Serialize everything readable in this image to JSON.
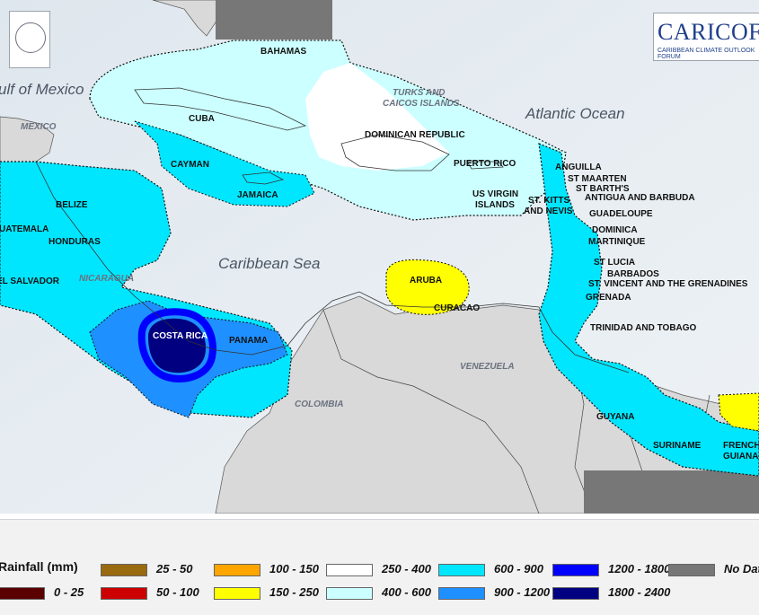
{
  "map": {
    "sea_labels": {
      "gulf": "ulf of Mexico",
      "atlantic": "Atlantic Ocean",
      "caribbean": "Caribbean Sea",
      "turks": "TURKS AND",
      "caicos": "CAICOS ISLANDS",
      "mexico": "MEXICO",
      "nicaragua": "NICARAGUA",
      "venezuela": "VENEZUELA",
      "colombia": "COLOMBIA"
    },
    "country_labels": {
      "bahamas": "BAHAMAS",
      "cuba": "CUBA",
      "cayman": "CAYMAN",
      "jamaica": "JAMAICA",
      "dominican_republic": "DOMINICAN REPUBLIC",
      "puerto_rico": "PUERTO RICO",
      "us_virgin_1": "US VIRGIN",
      "us_virgin_2": "ISLANDS",
      "anguilla": "ANGUILLA",
      "st_maarten": "ST MAARTEN",
      "st_barths": "ST BARTH'S",
      "antigua": "ANTIGUA AND BARBUDA",
      "st_kitts_1": "ST. KITTS",
      "st_kitts_2": "AND NEVIS",
      "guadeloupe": "GUADELOUPE",
      "dominica": "DOMINICA",
      "martinique": "MARTINIQUE",
      "st_lucia": "ST LUCIA",
      "barbados": "BARBADOS",
      "st_vincent": "ST. VINCENT AND THE GRENADINES",
      "grenada": "GRENADA",
      "trinidad": "TRINIDAD AND TOBAGO",
      "guyana": "GUYANA",
      "suriname": "SURINAME",
      "french_guiana_1": "FRENCH",
      "french_guiana_2": "GUIANA",
      "belize": "BELIZE",
      "guatemala": "UATEMALA",
      "honduras": "HONDURAS",
      "el_salvador": "EL SALVADOR",
      "costa_rica": "COSTA RICA",
      "panama": "PANAMA",
      "aruba": "ARUBA",
      "curacao": "CURACAO"
    },
    "logo": {
      "brand": "CARICOF",
      "tagline": "CARIBBEAN CLIMATE OUTLOOK FORUM"
    }
  },
  "legend": {
    "title": "Rainfall (mm)",
    "items": [
      {
        "label": "0 - 25",
        "color": "#5a0000"
      },
      {
        "label": "25 - 50",
        "color": "#9a6a10"
      },
      {
        "label": "50 - 100",
        "color": "#cc0000"
      },
      {
        "label": "100 - 150",
        "color": "#ffa500"
      },
      {
        "label": "150 - 250",
        "color": "#ffff00"
      },
      {
        "label": "250 - 400",
        "color": "#ffffff"
      },
      {
        "label": "400 - 600",
        "color": "#ccffff"
      },
      {
        "label": "600 - 900",
        "color": "#00e6ff"
      },
      {
        "label": "900 - 1200",
        "color": "#1e90ff"
      },
      {
        "label": "1200 - 1800",
        "color": "#0000ff"
      },
      {
        "label": "1800 - 2400",
        "color": "#000080"
      },
      {
        "label": "No Data",
        "color": "#777777"
      }
    ]
  }
}
